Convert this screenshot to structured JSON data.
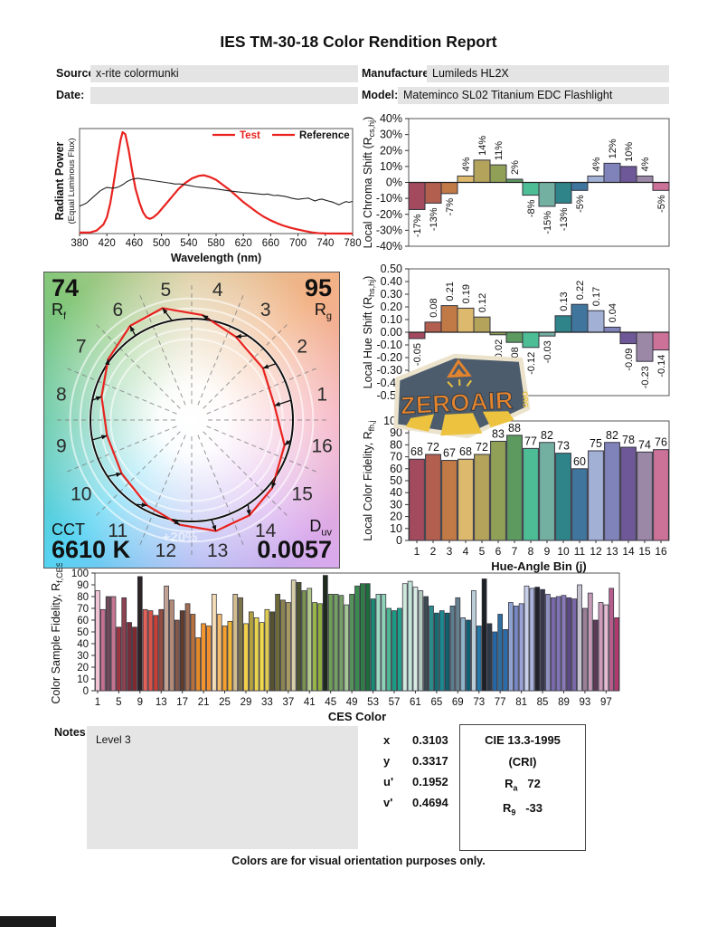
{
  "title": "IES TM-30-18 Color Rendition Report",
  "header": {
    "source_label": "Source:",
    "source_value": "x-rite colormunki",
    "date_label": "Date:",
    "date_value": "",
    "manufacturer_label": "Manufacturer:",
    "manufacturer_value": "Lumileds HL2X",
    "model_label": "Model:",
    "model_value": "Mateminco SL02 Titanium EDC Flashlight"
  },
  "cvg": {
    "rf_value": "74",
    "rf_pre": "R",
    "rf_sub": "f",
    "rg_value": "95",
    "rg_pre": "R",
    "rg_sub": "g",
    "cct_label": "CCT",
    "cct_value": "6610 K",
    "duv_pre": "D",
    "duv_sub": "uv",
    "duv_value": "0.0057",
    "ring_label": "+20%",
    "bins": [
      1,
      2,
      3,
      4,
      5,
      6,
      7,
      8,
      9,
      10,
      11,
      12,
      13,
      14,
      15,
      16
    ]
  },
  "watermark": {
    "text": "ZEROAIR",
    "suffix": "ORG"
  },
  "bin_colors": [
    "#a34a5e",
    "#b25f50",
    "#c17a45",
    "#dcb96d",
    "#b3a35b",
    "#90a057",
    "#5d9a5f",
    "#4dbd96",
    "#74b0a2",
    "#2e8489",
    "#40759e",
    "#a2b0d6",
    "#8083ba",
    "#6f5898",
    "#9b87a6",
    "#cc7298"
  ],
  "chart_data": [
    {
      "id": "spd",
      "type": "line",
      "title": "Spectral Power Distribution",
      "xlabel": "Wavelength (nm)",
      "ylabel_lines": [
        "Radiant Power",
        "(Equal Luminous Flux)"
      ],
      "xlim": [
        380,
        780
      ],
      "xticks": [
        380,
        420,
        460,
        500,
        540,
        580,
        620,
        660,
        700,
        740,
        780
      ],
      "legend": [
        {
          "name": "Test",
          "color": "#e8231f",
          "text_color": "#e8231f"
        },
        {
          "name": "Reference",
          "color": "#e8231f",
          "text_color": "#111111"
        }
      ],
      "series": [
        {
          "name": "Test",
          "color": "#e8231f",
          "width": 2.2,
          "points": [
            [
              380,
              0.01
            ],
            [
              395,
              0.01
            ],
            [
              405,
              0.03
            ],
            [
              415,
              0.09
            ],
            [
              420,
              0.16
            ],
            [
              425,
              0.3
            ],
            [
              430,
              0.5
            ],
            [
              435,
              0.72
            ],
            [
              440,
              0.92
            ],
            [
              443,
              1.0
            ],
            [
              447,
              0.98
            ],
            [
              452,
              0.82
            ],
            [
              457,
              0.62
            ],
            [
              462,
              0.44
            ],
            [
              468,
              0.3
            ],
            [
              473,
              0.21
            ],
            [
              478,
              0.16
            ],
            [
              483,
              0.145
            ],
            [
              488,
              0.16
            ],
            [
              495,
              0.2
            ],
            [
              505,
              0.28
            ],
            [
              515,
              0.36
            ],
            [
              525,
              0.44
            ],
            [
              535,
              0.5
            ],
            [
              545,
              0.545
            ],
            [
              555,
              0.57
            ],
            [
              562,
              0.575
            ],
            [
              570,
              0.56
            ],
            [
              580,
              0.53
            ],
            [
              590,
              0.48
            ],
            [
              600,
              0.43
            ],
            [
              610,
              0.37
            ],
            [
              620,
              0.31
            ],
            [
              630,
              0.26
            ],
            [
              640,
              0.21
            ],
            [
              650,
              0.165
            ],
            [
              660,
              0.13
            ],
            [
              670,
              0.1
            ],
            [
              680,
              0.075
            ],
            [
              690,
              0.055
            ],
            [
              700,
              0.04
            ],
            [
              710,
              0.025
            ],
            [
              720,
              0.012
            ],
            [
              730,
              0.004
            ],
            [
              740,
              0.001
            ],
            [
              780,
              0.0
            ]
          ]
        },
        {
          "name": "Reference",
          "color": "#222222",
          "width": 1.1,
          "points": [
            [
              380,
              0.27
            ],
            [
              385,
              0.285
            ],
            [
              390,
              0.3
            ],
            [
              395,
              0.33
            ],
            [
              400,
              0.36
            ],
            [
              405,
              0.39
            ],
            [
              410,
              0.42
            ],
            [
              415,
              0.44
            ],
            [
              420,
              0.455
            ],
            [
              425,
              0.45
            ],
            [
              430,
              0.448
            ],
            [
              435,
              0.455
            ],
            [
              440,
              0.47
            ],
            [
              445,
              0.49
            ],
            [
              450,
              0.515
            ],
            [
              455,
              0.53
            ],
            [
              460,
              0.54
            ],
            [
              465,
              0.545
            ],
            [
              470,
              0.54
            ],
            [
              475,
              0.535
            ],
            [
              480,
              0.53
            ],
            [
              490,
              0.52
            ],
            [
              500,
              0.51
            ],
            [
              510,
              0.5
            ],
            [
              515,
              0.495
            ],
            [
              520,
              0.488
            ],
            [
              525,
              0.49
            ],
            [
              530,
              0.487
            ],
            [
              540,
              0.475
            ],
            [
              550,
              0.462
            ],
            [
              560,
              0.455
            ],
            [
              570,
              0.448
            ],
            [
              580,
              0.44
            ],
            [
              590,
              0.43
            ],
            [
              600,
              0.42
            ],
            [
              610,
              0.412
            ],
            [
              620,
              0.405
            ],
            [
              630,
              0.4
            ],
            [
              640,
              0.392
            ],
            [
              650,
              0.386
            ],
            [
              655,
              0.39
            ],
            [
              660,
              0.382
            ],
            [
              665,
              0.375
            ],
            [
              670,
              0.378
            ],
            [
              675,
              0.372
            ],
            [
              680,
              0.368
            ],
            [
              685,
              0.36
            ],
            [
              690,
              0.35
            ],
            [
              695,
              0.343
            ],
            [
              700,
              0.338
            ],
            [
              705,
              0.342
            ],
            [
              710,
              0.346
            ],
            [
              715,
              0.35
            ],
            [
              720,
              0.335
            ],
            [
              725,
              0.322
            ],
            [
              730,
              0.334
            ],
            [
              735,
              0.34
            ],
            [
              740,
              0.33
            ],
            [
              745,
              0.32
            ],
            [
              750,
              0.312
            ],
            [
              755,
              0.298
            ],
            [
              760,
              0.284
            ],
            [
              765,
              0.3
            ],
            [
              770,
              0.315
            ],
            [
              775,
              0.308
            ],
            [
              780,
              0.318
            ]
          ]
        }
      ]
    },
    {
      "id": "chroma_shift",
      "type": "bar",
      "categories": [
        1,
        2,
        3,
        4,
        5,
        6,
        7,
        8,
        9,
        10,
        11,
        12,
        13,
        14,
        15,
        16
      ],
      "values": [
        -17,
        -13,
        -7,
        4,
        14,
        11,
        2,
        -8,
        -15,
        -13,
        -5,
        4,
        12,
        10,
        4,
        -5
      ],
      "labels": [
        "-17%",
        "-13%",
        "-7%",
        "4%",
        "14%",
        "11%",
        "2%",
        "-8%",
        "-15%",
        "-13%",
        "-5%",
        "4%",
        "12%",
        "10%",
        "4%",
        "-5%"
      ],
      "ylim": [
        -40,
        40
      ],
      "ytick_values": [
        40,
        30,
        20,
        10,
        0,
        -10,
        -20,
        -30,
        -40
      ],
      "ytick_labels": [
        "40%",
        "30%",
        "20%",
        "10%",
        "0%",
        "-10%",
        "-20%",
        "-30%",
        "-40%"
      ],
      "ylabel": {
        "pre": "Local Chroma Shift (R",
        "sub": "cs,hj",
        "post": ")"
      }
    },
    {
      "id": "hue_shift",
      "type": "bar",
      "categories": [
        1,
        2,
        3,
        4,
        5,
        6,
        7,
        8,
        9,
        10,
        11,
        12,
        13,
        14,
        15,
        16
      ],
      "values": [
        -0.05,
        0.08,
        0.21,
        0.19,
        0.12,
        -0.02,
        -0.08,
        -0.12,
        -0.03,
        0.13,
        0.22,
        0.17,
        0.04,
        -0.09,
        -0.23,
        -0.14
      ],
      "labels": [
        "-0.05",
        "0.08",
        "0.21",
        "0.19",
        "0.12",
        "-0.02",
        "-0.08",
        "-0.12",
        "-0.03",
        "0.13",
        "0.22",
        "0.17",
        "0.04",
        "-0.09",
        "-0.23",
        "-0.14"
      ],
      "ylim": [
        -0.5,
        0.5
      ],
      "ytick_values": [
        0.5,
        0.4,
        0.3,
        0.2,
        0.1,
        0,
        -0.1,
        -0.2,
        -0.3,
        -0.4,
        -0.5
      ],
      "ytick_labels": [
        "0.50",
        "0.40",
        "0.30",
        "0.20",
        "0.10",
        "0.00",
        "-0.10",
        "-0.20",
        "-0.30",
        "-0.40",
        "-0.50"
      ],
      "ylabel": {
        "pre": "Local Hue Shift (R",
        "sub": "hs,hj",
        "post": ")"
      }
    },
    {
      "id": "local_color_fidelity",
      "type": "bar",
      "categories": [
        1,
        2,
        3,
        4,
        5,
        6,
        7,
        8,
        9,
        10,
        11,
        12,
        13,
        14,
        15,
        16
      ],
      "values": [
        68,
        72,
        67,
        68,
        72,
        83,
        88,
        77,
        82,
        73,
        60,
        75,
        82,
        78,
        74,
        76
      ],
      "labels": [
        "68",
        "72",
        "67",
        "68",
        "72",
        "83",
        "88",
        "77",
        "82",
        "73",
        "60",
        "75",
        "82",
        "78",
        "74",
        "76"
      ],
      "ylim": [
        0,
        100
      ],
      "ytick_values": [
        100,
        90,
        80,
        70,
        60,
        50,
        40,
        30,
        20,
        10,
        0
      ],
      "ytick_labels": [
        "100",
        "90",
        "80",
        "70",
        "60",
        "50",
        "40",
        "30",
        "20",
        "10",
        "0"
      ],
      "xtick_labels": [
        "1",
        "2",
        "3",
        "4",
        "5",
        "6",
        "7",
        "8",
        "9",
        "10",
        "11",
        "12",
        "13",
        "14",
        "15",
        "16"
      ],
      "xlabel": "Hue-Angle Bin (j)",
      "ylabel": {
        "pre": "Local Color Fidelity, R",
        "sub": "fh,j",
        "post": ""
      }
    },
    {
      "id": "ces_fidelity",
      "type": "bar",
      "xlabel": "CES Color",
      "ylabel": {
        "pre": "Color Sample Fidelity, R",
        "sub": "f,CESi",
        "post": ""
      },
      "ylim": [
        0,
        100
      ],
      "ytick_values": [
        100,
        90,
        80,
        70,
        60,
        50,
        40,
        30,
        20,
        10,
        0
      ],
      "ytick_labels": [
        "100",
        "90",
        "80",
        "70",
        "60",
        "50",
        "40",
        "30",
        "20",
        "10",
        "0"
      ],
      "xtick_positions": [
        1,
        5,
        9,
        13,
        17,
        21,
        25,
        29,
        33,
        37,
        41,
        45,
        49,
        53,
        57,
        61,
        65,
        69,
        73,
        77,
        81,
        85,
        89,
        93,
        97
      ],
      "values": [
        85,
        69,
        80,
        80,
        54,
        79,
        58,
        54,
        97,
        69,
        68,
        64,
        69,
        89,
        77,
        60,
        68,
        74,
        65,
        45,
        57,
        55,
        82,
        65,
        55,
        59,
        82,
        79,
        57,
        67,
        62,
        58,
        69,
        67,
        82,
        77,
        75,
        94,
        92,
        85,
        87,
        75,
        74,
        98,
        82,
        82,
        81,
        73,
        82,
        89,
        91,
        91,
        78,
        82,
        82,
        70,
        68,
        70,
        91,
        93,
        88,
        85,
        80,
        72,
        66,
        68,
        66,
        72,
        79,
        62,
        60,
        85,
        55,
        95,
        57,
        50,
        65,
        52,
        75,
        72,
        74,
        89,
        87,
        88,
        86,
        82,
        79,
        80,
        81,
        79,
        78,
        90,
        70,
        83,
        60,
        75,
        73,
        87,
        62
      ],
      "colors": [
        "#f0c4d2",
        "#c4708e",
        "#6e4a58",
        "#c4758f",
        "#9e3642",
        "#8d4250",
        "#742f3a",
        "#7e2a2e",
        "#2d2426",
        "#e06258",
        "#d9544a",
        "#c84038",
        "#8f4c40",
        "#c2a292",
        "#b28a78",
        "#82584a",
        "#5e3c2e",
        "#a06e54",
        "#b5713f",
        "#e68a28",
        "#f2952e",
        "#ef9030",
        "#f4ddb6",
        "#f5bc6e",
        "#f5a02e",
        "#f2b633",
        "#d1bd8e",
        "#7d744a",
        "#f4d04a",
        "#b2a040",
        "#e8d44e",
        "#f2da4c",
        "#dfcc55",
        "#56512f",
        "#6f6b38",
        "#8c8450",
        "#a89a62",
        "#d6cfa8",
        "#4c5530",
        "#7a9150",
        "#b3c98c",
        "#9ab648",
        "#8fae3e",
        "#1f2a1e",
        "#6f9e58",
        "#75a065",
        "#789e67",
        "#a4c795",
        "#57925d",
        "#3b8a4f",
        "#2e7d46",
        "#1e6b3c",
        "#1b8a74",
        "#9fd9c2",
        "#8ed3b8",
        "#4db694",
        "#199a82",
        "#20a08a",
        "#cfe9dd",
        "#c3e6d8",
        "#d8ebe3",
        "#b4c9bd",
        "#3e4a52",
        "#2b8a8a",
        "#156b70",
        "#1d8a93",
        "#12606b",
        "#5d7d8c",
        "#68818f",
        "#8fb4c9",
        "#0f5e73",
        "#bccdd6",
        "#2579a6",
        "#1d2126",
        "#2e3a47",
        "#2468a8",
        "#2f6e9e",
        "#2a6bab",
        "#8fa3d0",
        "#7787c4",
        "#9aa3d6",
        "#c8cfe8",
        "#aab4dc",
        "#23232e",
        "#37374a",
        "#8f8fc0",
        "#7a6aad",
        "#8073b5",
        "#8a7ab8",
        "#5d4a85",
        "#7a68a8",
        "#c6c3cf",
        "#9a7f96",
        "#c49ab4",
        "#5e3a56",
        "#cf9dba",
        "#e3bcd2",
        "#b75d8c",
        "#b03a6e"
      ]
    },
    {
      "id": "color_vector_graphic",
      "type": "polar-gamut",
      "rf": 74,
      "rg": 95,
      "cct": "6610 K",
      "duv": 0.0057,
      "chroma_shift_pct": [
        -17,
        -13,
        -7,
        4,
        14,
        11,
        2,
        -8,
        -15,
        -13,
        -5,
        4,
        12,
        10,
        4,
        -5
      ],
      "hue_shift": [
        -0.05,
        0.08,
        0.21,
        0.19,
        0.12,
        -0.02,
        -0.08,
        -0.12,
        -0.03,
        0.13,
        0.22,
        0.17,
        0.04,
        -0.09,
        -0.23,
        -0.14
      ]
    }
  ],
  "notes": {
    "label": "Notes:",
    "value": "Level 3"
  },
  "chromaticity": {
    "rows": [
      {
        "label": "x",
        "value": "0.3103"
      },
      {
        "label": "y",
        "value": "0.3317"
      },
      {
        "label": "u'",
        "value": "0.1952"
      },
      {
        "label": "v'",
        "value": "0.4694"
      }
    ]
  },
  "cie": {
    "title": "CIE 13.3-1995",
    "subtitle": "(CRI)",
    "ra_pre": "R",
    "ra_sub": "a",
    "ra_value": "72",
    "r9_pre": "R",
    "r9_sub": "9",
    "r9_value": "-33"
  },
  "footer": "Colors are for visual orientation purposes only."
}
